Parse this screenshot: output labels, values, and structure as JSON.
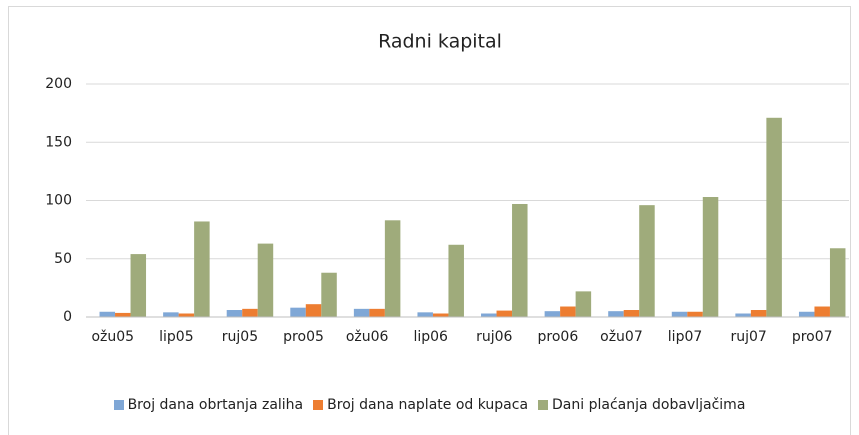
{
  "chart_data": {
    "type": "bar",
    "title": "Radni kapital",
    "categories": [
      "ožu05",
      "lip05",
      "ruj05",
      "pro05",
      "ožu06",
      "lip06",
      "ruj06",
      "pro06",
      "ožu07",
      "lip07",
      "ruj07",
      "pro07"
    ],
    "series": [
      {
        "name": "Broj dana obrtanja zaliha",
        "color": "#7fa7d6",
        "values": [
          4.5,
          4,
          6,
          8,
          7,
          4,
          3,
          5,
          5,
          4.5,
          3,
          4.5
        ]
      },
      {
        "name": "Broj dana naplate od kupaca",
        "color": "#ed7d31",
        "values": [
          3.5,
          3,
          7,
          11,
          7,
          3,
          5.5,
          9,
          6,
          4.5,
          6,
          9
        ]
      },
      {
        "name": "Dani plaćanja dobavljačima",
        "color": "#9fab7b",
        "values": [
          54,
          82,
          63,
          38,
          83,
          62,
          97,
          22,
          96,
          103,
          171,
          59
        ]
      }
    ],
    "ylim": [
      0,
      200
    ],
    "yticks": [
      0,
      50,
      100,
      150,
      200
    ],
    "grid": true,
    "legend": "bottom"
  }
}
